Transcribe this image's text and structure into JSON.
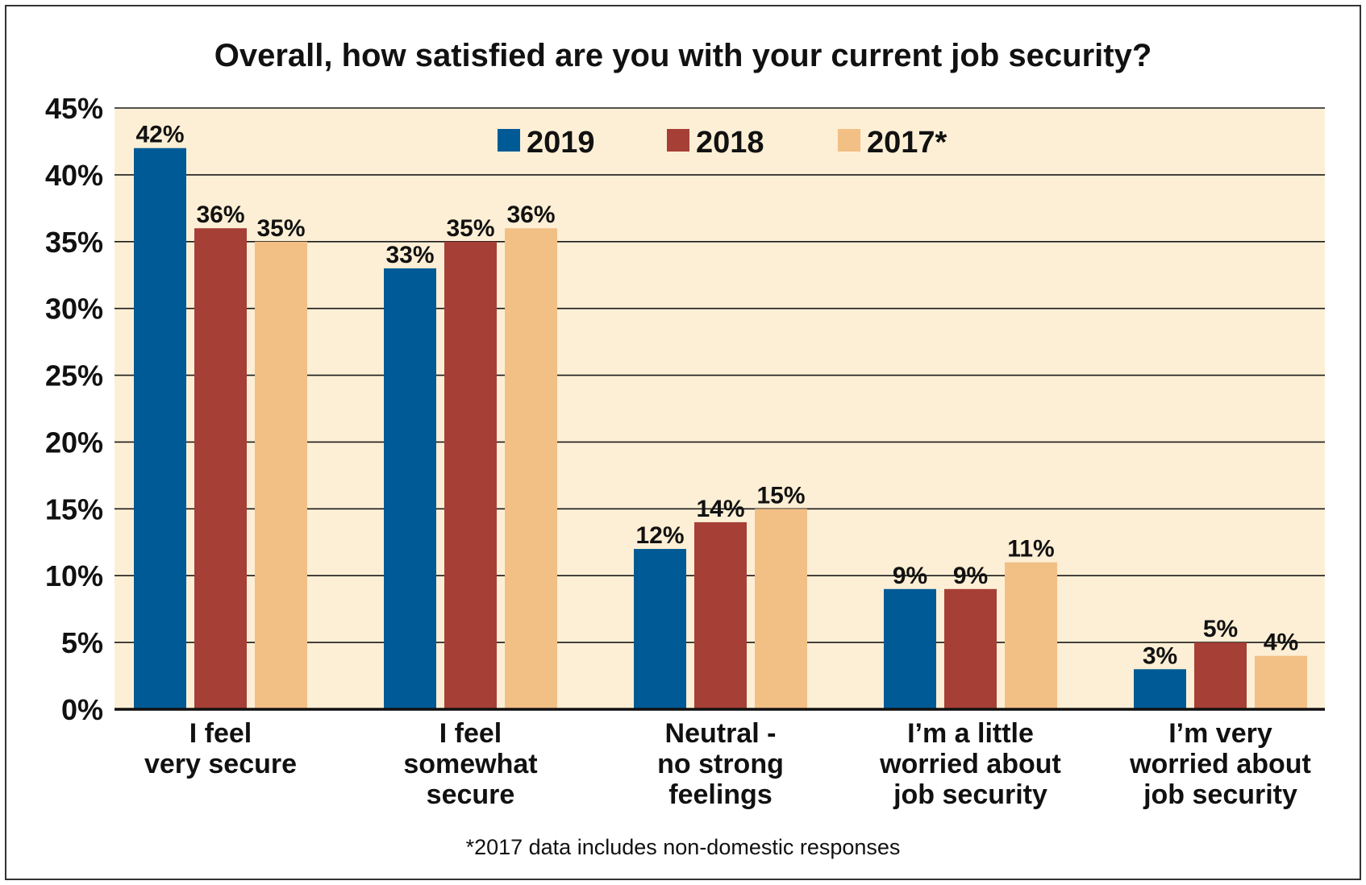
{
  "chart_data": {
    "type": "bar",
    "title": "Overall, how satisfied are you with your current job security?",
    "categories": [
      [
        "I feel",
        "very secure"
      ],
      [
        "I feel",
        "somewhat",
        "secure"
      ],
      [
        "Neutral -",
        "no strong",
        "feelings"
      ],
      [
        "I’m a little",
        "worried about",
        "job security"
      ],
      [
        "I’m very",
        "worried about",
        "job security"
      ]
    ],
    "series": [
      {
        "name": "2019",
        "color": "#005a96",
        "values": [
          42,
          33,
          12,
          9,
          3
        ],
        "labels": [
          "42%",
          "33%",
          "12%",
          "9%",
          "3%"
        ]
      },
      {
        "name": "2018",
        "color": "#a63f36",
        "values": [
          36,
          35,
          14,
          9,
          5
        ],
        "labels": [
          "36%",
          "35%",
          "14%",
          "9%",
          "5%"
        ]
      },
      {
        "name": "2017*",
        "color": "#f2bf85",
        "values": [
          35,
          36,
          15,
          11,
          4
        ],
        "labels": [
          "35%",
          "36%",
          "15%",
          "11%",
          "4%"
        ]
      }
    ],
    "ylim": [
      0,
      45
    ],
    "yticks": [
      0,
      5,
      10,
      15,
      20,
      25,
      30,
      35,
      40,
      45
    ],
    "ytick_labels": [
      "0%",
      "5%",
      "10%",
      "15%",
      "20%",
      "25%",
      "30%",
      "35%",
      "40%",
      "45%"
    ],
    "grid": true,
    "legend_position": "top-center",
    "plot_background": "#fdefd5",
    "footnote": "*2017 data includes non-domestic responses"
  }
}
